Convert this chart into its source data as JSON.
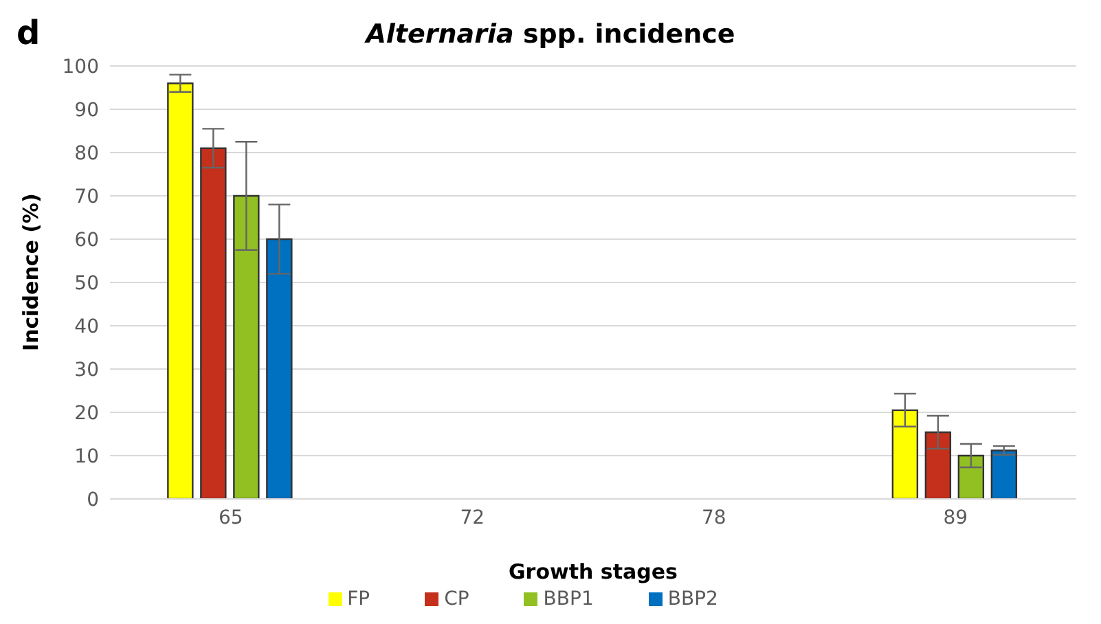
{
  "chart_data": {
    "type": "bar",
    "title": "Alternaria spp. incidence",
    "annotations": [
      "d"
    ],
    "xlabel": "Growth stages",
    "ylabel": "Incidence (%)",
    "categories": [
      "65",
      "72",
      "78",
      "89"
    ],
    "series": [
      {
        "name": "FP",
        "color": "#ffff00",
        "values": [
          96,
          null,
          null,
          20.5
        ],
        "errors": [
          2,
          null,
          null,
          3.8
        ]
      },
      {
        "name": "CP",
        "color": "#c4301c",
        "values": [
          81,
          null,
          null,
          15.4
        ],
        "errors": [
          4.5,
          null,
          null,
          3.8
        ]
      },
      {
        "name": "BBP1",
        "color": "#92c023",
        "values": [
          70,
          null,
          null,
          10
        ],
        "errors": [
          12.5,
          null,
          null,
          2.7
        ]
      },
      {
        "name": "BBP2",
        "color": "#0070c0",
        "values": [
          60,
          null,
          null,
          11.2
        ],
        "errors": [
          8,
          null,
          null,
          1
        ]
      }
    ],
    "ylim": [
      0,
      100
    ],
    "yticks": [
      0,
      10,
      20,
      30,
      40,
      50,
      60,
      70,
      80,
      90,
      100
    ],
    "grid": "y",
    "legend": "bottom"
  }
}
